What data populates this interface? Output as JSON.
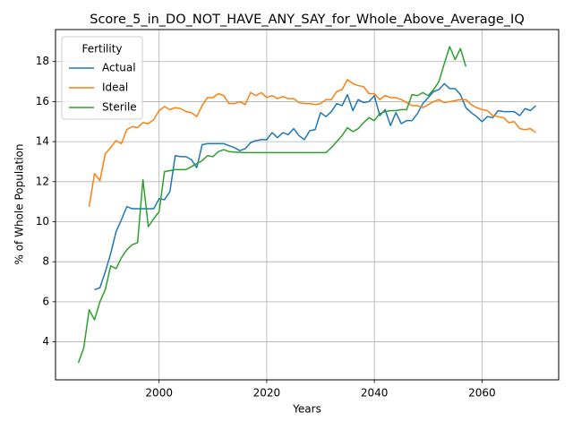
{
  "chart_data": {
    "type": "line",
    "title": "Score_5_in_DO_NOT_HAVE_ANY_SAY_for_Whole_Above_Average_IQ",
    "x_label": "Years",
    "y_label": "% of Whole Population",
    "legend_title": "Fertility",
    "legend": "upper left",
    "grid": true,
    "x": [
      1985,
      1986,
      1987,
      1988,
      1989,
      1990,
      1991,
      1992,
      1993,
      1994,
      1995,
      1996,
      1997,
      1998,
      1999,
      2000,
      2001,
      2002,
      2003,
      2004,
      2005,
      2006,
      2007,
      2008,
      2009,
      2010,
      2011,
      2012,
      2013,
      2014,
      2015,
      2016,
      2017,
      2018,
      2019,
      2020,
      2021,
      2022,
      2023,
      2024,
      2025,
      2026,
      2027,
      2028,
      2029,
      2030,
      2031,
      2032,
      2033,
      2034,
      2035,
      2036,
      2037,
      2038,
      2039,
      2040,
      2041,
      2042,
      2043,
      2044,
      2045,
      2046,
      2047,
      2048,
      2049,
      2050,
      2051,
      2052,
      2053,
      2054,
      2055,
      2056,
      2057,
      2058,
      2059,
      2060,
      2061,
      2062,
      2063,
      2064,
      2065,
      2066,
      2067,
      2068,
      2069,
      2070
    ],
    "series": [
      {
        "name": "Actual",
        "color": "#1f77b4",
        "values": [
          null,
          null,
          null,
          6.6,
          6.7,
          7.5,
          8.4,
          9.5,
          10.1,
          10.75,
          10.65,
          10.65,
          10.65,
          10.65,
          10.65,
          11.15,
          11.1,
          11.5,
          13.3,
          13.25,
          13.25,
          13.1,
          12.7,
          13.85,
          13.9,
          13.9,
          13.9,
          13.9,
          13.8,
          13.7,
          13.55,
          13.65,
          13.95,
          14.05,
          14.1,
          14.1,
          14.45,
          14.2,
          14.45,
          14.35,
          14.65,
          14.3,
          14.1,
          14.55,
          14.6,
          15.45,
          15.25,
          15.5,
          15.9,
          15.8,
          16.35,
          15.55,
          16.1,
          15.95,
          16.0,
          16.3,
          15.3,
          15.6,
          14.8,
          15.45,
          14.9,
          15.05,
          15.05,
          15.4,
          15.9,
          16.2,
          16.5,
          16.6,
          16.9,
          16.65,
          16.65,
          16.35,
          15.7,
          15.45,
          15.25,
          15.0,
          15.25,
          15.2,
          15.55,
          15.5,
          15.5,
          15.5,
          15.3,
          15.65,
          15.55,
          15.8
        ]
      },
      {
        "name": "Ideal",
        "color": "#ff7f0e",
        "values": [
          null,
          null,
          10.75,
          12.4,
          12.05,
          13.4,
          13.7,
          14.05,
          13.9,
          14.6,
          14.75,
          14.7,
          14.95,
          14.9,
          15.1,
          15.55,
          15.75,
          15.6,
          15.7,
          15.65,
          15.5,
          15.45,
          15.25,
          15.8,
          16.2,
          16.2,
          16.4,
          16.3,
          15.9,
          15.9,
          16.0,
          15.85,
          16.45,
          16.3,
          16.45,
          16.2,
          16.3,
          16.15,
          16.25,
          16.15,
          16.15,
          15.95,
          15.9,
          15.9,
          15.85,
          15.9,
          16.1,
          16.1,
          16.5,
          16.6,
          17.1,
          16.9,
          16.8,
          16.75,
          16.4,
          16.4,
          16.1,
          16.3,
          16.2,
          16.2,
          16.1,
          15.95,
          15.8,
          15.8,
          15.7,
          15.85,
          16.0,
          16.1,
          15.95,
          16.0,
          16.05,
          16.1,
          16.1,
          15.85,
          15.7,
          15.6,
          15.55,
          15.3,
          15.25,
          15.2,
          14.95,
          15.0,
          14.65,
          14.6,
          14.65,
          14.45
        ]
      },
      {
        "name": "Sterile",
        "color": "#2ca02c",
        "values": [
          2.95,
          3.7,
          5.6,
          5.1,
          6.0,
          6.6,
          7.8,
          7.65,
          8.2,
          8.6,
          8.85,
          8.95,
          12.1,
          9.75,
          10.15,
          10.5,
          12.5,
          12.55,
          12.6,
          12.6,
          12.6,
          12.75,
          12.9,
          13.05,
          13.3,
          13.25,
          13.5,
          13.6,
          13.5,
          13.48,
          13.47,
          13.45,
          13.45,
          13.45,
          13.45,
          13.45,
          13.45,
          13.45,
          13.45,
          13.45,
          13.45,
          13.45,
          13.45,
          13.45,
          13.45,
          13.45,
          13.45,
          13.7,
          14.0,
          14.3,
          14.7,
          14.5,
          14.65,
          14.95,
          15.2,
          15.05,
          15.4,
          15.5,
          15.55,
          15.55,
          15.6,
          15.6,
          16.35,
          16.3,
          16.45,
          16.3,
          16.6,
          17.0,
          17.9,
          18.75,
          18.1,
          18.65,
          17.75,
          null,
          null,
          null,
          null,
          null,
          null,
          null,
          null,
          null,
          null,
          null,
          null,
          null
        ]
      }
    ],
    "xlim": [
      1980.75,
      2074.25
    ],
    "ylim": [
      2.1,
      19.6
    ],
    "xticks": [
      2000,
      2020,
      2040,
      2060
    ],
    "yticks": [
      4,
      6,
      8,
      10,
      12,
      14,
      16,
      18
    ]
  }
}
